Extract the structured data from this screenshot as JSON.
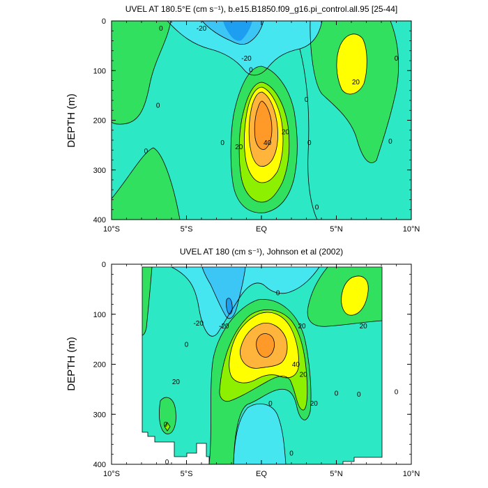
{
  "chart_data": [
    {
      "type": "contour",
      "title": "UVEL AT 180.5°E (cm s⁻¹), b.e15.B1850.f09_g16.pi_control.all.95 [25-44]",
      "ylabel": "DEPTH (m)",
      "xlabel": "",
      "xlim": [
        -10,
        10
      ],
      "ylim": [
        400,
        0
      ],
      "x_ticks": [
        "10°S",
        "5°S",
        "EQ",
        "5°N",
        "10°N"
      ],
      "y_ticks": [
        "0",
        "100",
        "200",
        "300",
        "400"
      ],
      "contour_interval": 10,
      "contour_labels": [
        {
          "text": "0",
          "x": -6.7,
          "y": 15
        },
        {
          "text": "-20",
          "x": -4.0,
          "y": 15
        },
        {
          "text": "-20",
          "x": -1.0,
          "y": 75
        },
        {
          "text": "0",
          "x": -0.7,
          "y": 98
        },
        {
          "text": "0",
          "x": 9.0,
          "y": 75
        },
        {
          "text": "20",
          "x": 6.3,
          "y": 123
        },
        {
          "text": "0",
          "x": 3.0,
          "y": 158
        },
        {
          "text": "0",
          "x": -6.9,
          "y": 170
        },
        {
          "text": "20",
          "x": 1.6,
          "y": 223
        },
        {
          "text": "40",
          "x": 0.4,
          "y": 245
        },
        {
          "text": "20",
          "x": -1.5,
          "y": 253
        },
        {
          "text": "0",
          "x": -2.6,
          "y": 245
        },
        {
          "text": "0",
          "x": 3.2,
          "y": 245
        },
        {
          "text": "0",
          "x": 8.6,
          "y": 242
        },
        {
          "text": "0",
          "x": -7.7,
          "y": 262
        },
        {
          "text": "0",
          "x": 3.7,
          "y": 375
        }
      ]
    },
    {
      "type": "contour",
      "title": "UVEL AT 180 (cm s⁻¹), Johnson et al (2002)",
      "ylabel": "DEPTH (m)",
      "xlabel": "",
      "xlim": [
        -10,
        10
      ],
      "ylim": [
        400,
        0
      ],
      "x_ticks": [
        "10°S",
        "5°S",
        "EQ",
        "5°N",
        "10°N"
      ],
      "y_ticks": [
        "0",
        "100",
        "200",
        "300",
        "400"
      ],
      "contour_interval": 10,
      "contour_labels": [
        {
          "text": "0",
          "x": 1.1,
          "y": 57
        },
        {
          "text": "-20",
          "x": -4.2,
          "y": 118
        },
        {
          "text": "-20",
          "x": -2.5,
          "y": 123
        },
        {
          "text": "20",
          "x": 2.7,
          "y": 123
        },
        {
          "text": "20",
          "x": 6.8,
          "y": 123
        },
        {
          "text": "0",
          "x": -5.0,
          "y": 160
        },
        {
          "text": "40",
          "x": 2.3,
          "y": 200
        },
        {
          "text": "20",
          "x": 2.8,
          "y": 220
        },
        {
          "text": "20",
          "x": -5.7,
          "y": 235
        },
        {
          "text": "0",
          "x": 5.0,
          "y": 258
        },
        {
          "text": "0",
          "x": 6.5,
          "y": 260
        },
        {
          "text": "0",
          "x": 9.0,
          "y": 255
        },
        {
          "text": "20",
          "x": 3.5,
          "y": 278
        },
        {
          "text": "0",
          "x": 0.6,
          "y": 278
        },
        {
          "text": "0",
          "x": -6.4,
          "y": 320
        },
        {
          "text": "0",
          "x": 2.0,
          "y": 378
        },
        {
          "text": "0",
          "x": -6.3,
          "y": 395
        }
      ]
    }
  ],
  "colors": {
    "le_m30": "#1e9ef0",
    "m30_m20": "#3cc6f5",
    "m20_0": "#46e6f0",
    "0_10": "#2ce8c5",
    "10_20": "#32e060",
    "20_30": "#8cf000",
    "30_40": "#ffff00",
    "40_50": "#ffb43c",
    "gt_50": "#ff9a28"
  }
}
